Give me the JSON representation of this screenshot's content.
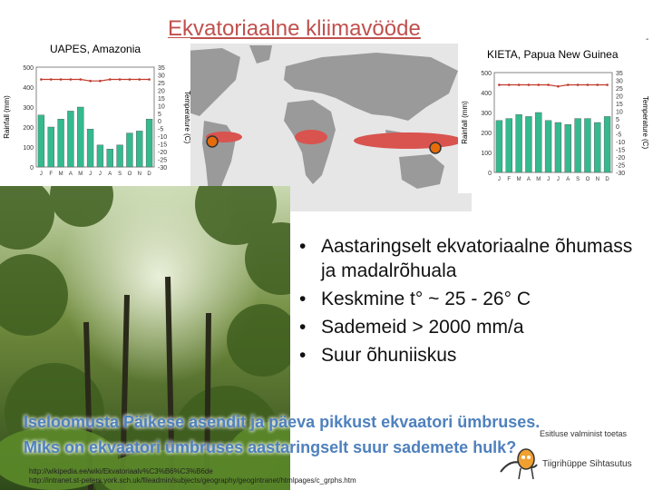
{
  "slide": {
    "title": "Ekvatoriaalne kliimavööde",
    "edge_mark": "-"
  },
  "charts": {
    "left": {
      "title": "UAPES, Amazonia",
      "left_axis_label": "Rainfall (mm)",
      "right_axis_label": "Temperature (C)",
      "left_ticks": [
        "500",
        "400",
        "300",
        "200",
        "100",
        "0"
      ],
      "right_ticks": [
        "35",
        "30",
        "25",
        "20",
        "15",
        "10",
        "5",
        "0",
        "-5",
        "-10",
        "-15",
        "-20",
        "-25",
        "-30"
      ],
      "months": [
        "J",
        "F",
        "M",
        "A",
        "M",
        "J",
        "J",
        "A",
        "S",
        "O",
        "N",
        "D"
      ],
      "rainfall_mm": [
        260,
        200,
        240,
        280,
        300,
        190,
        110,
        90,
        110,
        170,
        180,
        240
      ],
      "temperature_c": [
        27,
        27,
        27,
        27,
        27,
        26,
        26,
        27,
        27,
        27,
        27,
        27
      ]
    },
    "right": {
      "title": "KIETA, Papua New Guinea",
      "left_axis_label": "Rainfall (mm)",
      "right_axis_label": "Temperature (C)",
      "left_ticks": [
        "500",
        "400",
        "300",
        "200",
        "100",
        "0"
      ],
      "right_ticks": [
        "35",
        "30",
        "25",
        "20",
        "15",
        "10",
        "5",
        "0",
        "-5",
        "-10",
        "-15",
        "-20",
        "-25",
        "-30"
      ],
      "months": [
        "J",
        "F",
        "M",
        "A",
        "M",
        "J",
        "J",
        "A",
        "S",
        "O",
        "N",
        "D"
      ],
      "rainfall_mm": [
        260,
        270,
        290,
        280,
        300,
        260,
        250,
        240,
        270,
        270,
        250,
        280
      ],
      "temperature_c": [
        27,
        27,
        27,
        27,
        27,
        27,
        26,
        27,
        27,
        27,
        27,
        27
      ]
    }
  },
  "bullets": [
    "Aastaringselt ekvatoriaalne õhumass ja madalrõhuala",
    "Keskmine t° ~ 25 - 26° C",
    "Sademeid > 2000 mm/a",
    "Suur õhuniiskus"
  ],
  "bullet_symbol": "•",
  "questions": [
    "Iseloomusta Päikese asendit ja päeva pikkust ekvaatori ümbruses.",
    "Miks on ekvaatori ümbruses aastaringselt suur sademete hulk?"
  ],
  "links": [
    "http://wikipedia.ee/wiki/Ekvatoriaalv%C3%B6%C3%B6de",
    "http://intranet.st-peters.york.sch.uk/fileadmin/subjects/geography/geogintranet/htmlpages/c_grphs.htm"
  ],
  "credit": "Esitluse valminist toetas",
  "logo_text": "Tiigrihüppe Sihtasutus",
  "colors": {
    "title": "#c0504d",
    "question_text": "#4f81bd",
    "bar": "#35b98e",
    "temp_line": "#c0392b",
    "map_land": "#9a9a9a",
    "map_ocean": "#e6e6e6",
    "rain_band": "#d9534f",
    "marker": "#e46c0a"
  }
}
